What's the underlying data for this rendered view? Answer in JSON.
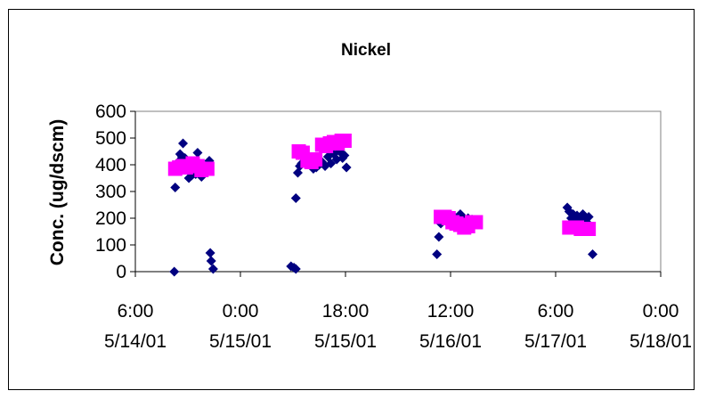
{
  "chart_data": {
    "type": "scatter",
    "title": "Nickel",
    "ylabel": "Conc. (ug/dscm)",
    "xlabel": "",
    "ylim": [
      0,
      600
    ],
    "yticks": [
      "0",
      "100",
      "200",
      "300",
      "400",
      "500",
      "600"
    ],
    "xlim": [
      "5/14/01 6:00",
      "5/18/01 0:00"
    ],
    "xticks": [
      {
        "time": "6:00",
        "date": "5/14/01"
      },
      {
        "time": "0:00",
        "date": "5/15/01"
      },
      {
        "time": "18:00",
        "date": "5/15/01"
      },
      {
        "time": "12:00",
        "date": "5/16/01"
      },
      {
        "time": "6:00",
        "date": "5/17/01"
      },
      {
        "time": "0:00",
        "date": "5/18/01"
      }
    ],
    "grid": false,
    "legend": "none",
    "series": [
      {
        "marker": "diamond",
        "color": "#000080",
        "points": [
          [
            "5/14/01 12:40",
            0
          ],
          [
            "5/14/01 12:50",
            315
          ],
          [
            "5/14/01 13:20",
            410
          ],
          [
            "5/14/01 13:40",
            440
          ],
          [
            "5/14/01 14:00",
            430
          ],
          [
            "5/14/01 14:10",
            480
          ],
          [
            "5/14/01 14:30",
            425
          ],
          [
            "5/14/01 14:50",
            390
          ],
          [
            "5/14/01 15:10",
            350
          ],
          [
            "5/14/01 15:40",
            360
          ],
          [
            "5/14/01 16:00",
            375
          ],
          [
            "5/14/01 16:20",
            365
          ],
          [
            "5/14/01 16:40",
            445
          ],
          [
            "5/14/01 17:00",
            395
          ],
          [
            "5/14/01 17:20",
            355
          ],
          [
            "5/14/01 17:40",
            375
          ],
          [
            "5/14/01 18:10",
            385
          ],
          [
            "5/14/01 18:40",
            415
          ],
          [
            "5/14/01 18:50",
            70
          ],
          [
            "5/14/01 19:00",
            40
          ],
          [
            "5/14/01 19:20",
            10
          ],
          [
            "5/15/01 8:40",
            20
          ],
          [
            "5/15/01 9:10",
            15
          ],
          [
            "5/15/01 9:30",
            10
          ],
          [
            "5/15/01 9:30",
            275
          ],
          [
            "5/15/01 9:50",
            370
          ],
          [
            "5/15/01 10:10",
            395
          ],
          [
            "5/15/01 10:30",
            405
          ],
          [
            "5/15/01 11:00",
            420
          ],
          [
            "5/15/01 11:30",
            405
          ],
          [
            "5/15/01 12:00",
            400
          ],
          [
            "5/15/01 12:30",
            385
          ],
          [
            "5/15/01 13:00",
            390
          ],
          [
            "5/15/01 13:30",
            400
          ],
          [
            "5/15/01 14:00",
            410
          ],
          [
            "5/15/01 14:30",
            395
          ],
          [
            "5/15/01 15:00",
            430
          ],
          [
            "5/15/01 15:30",
            405
          ],
          [
            "5/15/01 16:00",
            440
          ],
          [
            "5/15/01 16:30",
            420
          ],
          [
            "5/15/01 17:00",
            450
          ],
          [
            "5/15/01 17:30",
            425
          ],
          [
            "5/15/01 17:50",
            435
          ],
          [
            "5/15/01 18:10",
            390
          ],
          [
            "5/16/01 9:40",
            65
          ],
          [
            "5/16/01 10:00",
            130
          ],
          [
            "5/16/01 10:20",
            180
          ],
          [
            "5/16/01 10:40",
            195
          ],
          [
            "5/16/01 11:00",
            200
          ],
          [
            "5/16/01 11:20",
            190
          ],
          [
            "5/16/01 11:40",
            210
          ],
          [
            "5/16/01 12:00",
            200
          ],
          [
            "5/16/01 12:20",
            195
          ],
          [
            "5/16/01 12:40",
            205
          ],
          [
            "5/16/01 13:00",
            200
          ],
          [
            "5/16/01 13:20",
            190
          ],
          [
            "5/16/01 13:40",
            215
          ],
          [
            "5/16/01 14:00",
            195
          ],
          [
            "5/16/01 14:20",
            200
          ],
          [
            "5/16/01 14:40",
            185
          ],
          [
            "5/16/01 15:00",
            200
          ],
          [
            "5/16/01 15:20",
            175
          ],
          [
            "5/16/01 15:40",
            195
          ],
          [
            "5/16/01 16:00",
            190
          ],
          [
            "5/16/01 16:20",
            180
          ],
          [
            "5/17/01 8:00",
            240
          ],
          [
            "5/17/01 8:20",
            225
          ],
          [
            "5/17/01 8:40",
            200
          ],
          [
            "5/17/01 9:00",
            215
          ],
          [
            "5/17/01 9:20",
            200
          ],
          [
            "5/17/01 9:40",
            210
          ],
          [
            "5/17/01 10:00",
            195
          ],
          [
            "5/17/01 10:20",
            205
          ],
          [
            "5/17/01 10:40",
            215
          ],
          [
            "5/17/01 11:00",
            200
          ],
          [
            "5/17/01 11:20",
            185
          ],
          [
            "5/17/01 11:40",
            205
          ],
          [
            "5/17/01 12:20",
            65
          ]
        ]
      },
      {
        "marker": "square",
        "color": "#ff00ff",
        "points": [
          [
            "5/14/01 12:50",
            385
          ],
          [
            "5/14/01 13:30",
            390
          ],
          [
            "5/14/01 14:10",
            395
          ],
          [
            "5/14/01 14:40",
            390
          ],
          [
            "5/14/01 15:20",
            395
          ],
          [
            "5/14/01 15:50",
            405
          ],
          [
            "5/14/01 16:40",
            395
          ],
          [
            "5/14/01 17:20",
            380
          ],
          [
            "5/14/01 17:50",
            385
          ],
          [
            "5/14/01 18:20",
            385
          ],
          [
            "5/15/01 10:00",
            450
          ],
          [
            "5/15/01 10:40",
            445
          ],
          [
            "5/15/01 11:30",
            415
          ],
          [
            "5/15/01 12:10",
            410
          ],
          [
            "5/15/01 12:50",
            420
          ],
          [
            "5/15/01 14:00",
            475
          ],
          [
            "5/15/01 14:40",
            470
          ],
          [
            "5/15/01 15:20",
            480
          ],
          [
            "5/15/01 16:00",
            485
          ],
          [
            "5/15/01 16:40",
            480
          ],
          [
            "5/15/01 17:20",
            490
          ],
          [
            "5/15/01 17:50",
            490
          ],
          [
            "5/16/01 10:20",
            205
          ],
          [
            "5/16/01 11:00",
            205
          ],
          [
            "5/16/01 11:40",
            200
          ],
          [
            "5/16/01 12:20",
            185
          ],
          [
            "5/16/01 13:00",
            180
          ],
          [
            "5/16/01 13:40",
            175
          ],
          [
            "5/16/01 14:20",
            165
          ],
          [
            "5/16/01 15:00",
            170
          ],
          [
            "5/16/01 15:40",
            185
          ],
          [
            "5/16/01 16:20",
            185
          ],
          [
            "5/17/01 8:20",
            165
          ],
          [
            "5/17/01 9:00",
            165
          ],
          [
            "5/17/01 9:40",
            165
          ],
          [
            "5/17/01 10:20",
            160
          ],
          [
            "5/17/01 11:00",
            160
          ],
          [
            "5/17/01 11:40",
            160
          ]
        ]
      }
    ]
  }
}
